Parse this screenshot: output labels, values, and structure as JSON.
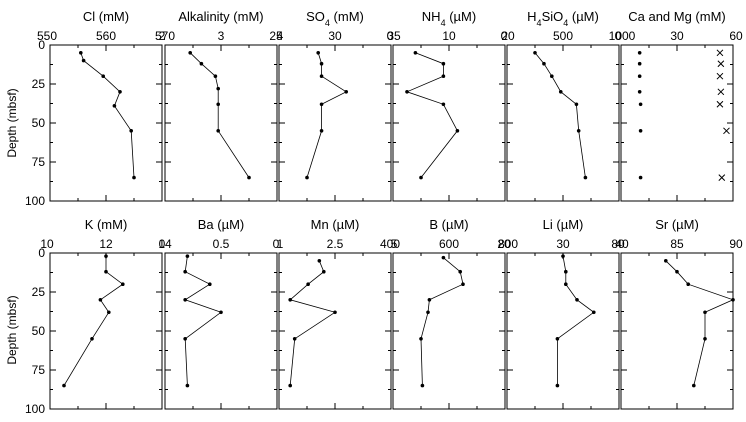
{
  "chart_data": [
    {
      "type": "line",
      "title": "Cl (mM)",
      "xlim": [
        550,
        570
      ],
      "xticks": [
        "550",
        "560",
        "570"
      ],
      "ylim": [
        0,
        100
      ],
      "series": [
        {
          "x": [
            555.5,
            556,
            559.5,
            562.5,
            561.5,
            564.5,
            565
          ],
          "y": [
            5,
            10,
            20,
            30,
            39,
            55,
            85
          ],
          "marker": "dot"
        }
      ]
    },
    {
      "type": "line",
      "title": "Alkalinity (mM)",
      "xlim": [
        2,
        4
      ],
      "xticks": [
        "2",
        "3",
        "4"
      ],
      "ylim": [
        0,
        100
      ],
      "series": [
        {
          "x": [
            2.45,
            2.65,
            2.9,
            2.95,
            2.95,
            2.95,
            3.5
          ],
          "y": [
            5,
            12,
            20,
            28,
            38,
            55,
            85
          ],
          "marker": "dot"
        }
      ]
    },
    {
      "type": "line",
      "title": "SO4 (mM)",
      "xlim": [
        25,
        35
      ],
      "xticks": [
        "25",
        "30",
        "35"
      ],
      "ylim": [
        0,
        100
      ],
      "series": [
        {
          "x": [
            28.5,
            28.8,
            28.8,
            31,
            28.8,
            28.8,
            27.5
          ],
          "y": [
            5,
            12,
            20,
            30,
            38,
            55,
            85
          ],
          "marker": "dot"
        }
      ]
    },
    {
      "type": "line",
      "title": "NH4 (µM)",
      "xlim": [
        0,
        20
      ],
      "xticks": [
        "0",
        "10",
        "20"
      ],
      "ylim": [
        0,
        100
      ],
      "series": [
        {
          "x": [
            4,
            9,
            9,
            2.5,
            9,
            11.5,
            5
          ],
          "y": [
            5,
            12,
            20,
            30,
            38,
            55,
            85
          ],
          "marker": "dot"
        }
      ]
    },
    {
      "type": "line",
      "title": "H4SiO4 (µM)",
      "xlim": [
        0,
        1000
      ],
      "xticks": [
        "0",
        "500",
        "1000"
      ],
      "ylim": [
        0,
        100
      ],
      "series": [
        {
          "x": [
            250,
            330,
            400,
            480,
            620,
            640,
            700
          ],
          "y": [
            5,
            12,
            20,
            30,
            38,
            55,
            85
          ],
          "marker": "dot"
        }
      ]
    },
    {
      "type": "scatter",
      "title": "Ca and Mg (mM)",
      "xlim": [
        0,
        60
      ],
      "xticks": [
        "0",
        "30",
        "60"
      ],
      "ylim": [
        0,
        100
      ],
      "series": [
        {
          "name": "Ca",
          "x": [
            10,
            10,
            10,
            10,
            10.5,
            10.5,
            10.5
          ],
          "y": [
            5,
            12,
            20,
            30,
            38,
            55,
            85
          ],
          "marker": "dot"
        },
        {
          "name": "Mg",
          "x": [
            53,
            53.5,
            53,
            53.5,
            53,
            56.5,
            54
          ],
          "y": [
            5,
            12,
            20,
            30,
            38,
            55,
            85
          ],
          "marker": "x"
        }
      ]
    },
    {
      "type": "line",
      "title": "K (mM)",
      "xlim": [
        10,
        14
      ],
      "xticks": [
        "10",
        "12",
        "14"
      ],
      "ylim": [
        0,
        100
      ],
      "series": [
        {
          "x": [
            12,
            12,
            12.6,
            11.8,
            12.1,
            11.5,
            10.5
          ],
          "y": [
            2,
            12,
            20,
            30,
            38,
            55,
            85
          ],
          "marker": "dot"
        }
      ]
    },
    {
      "type": "line",
      "title": "Ba (µM)",
      "xlim": [
        0,
        1
      ],
      "xticks": [
        "0",
        "0.5",
        "1"
      ],
      "ylim": [
        0,
        100
      ],
      "series": [
        {
          "x": [
            0.2,
            0.18,
            0.4,
            0.18,
            0.5,
            0.18,
            0.2
          ],
          "y": [
            2,
            12,
            20,
            30,
            38,
            55,
            85
          ],
          "marker": "dot"
        }
      ]
    },
    {
      "type": "line",
      "title": "Mn (µM)",
      "xlim": [
        0,
        5
      ],
      "xticks": [
        "0",
        "2.5",
        "5"
      ],
      "ylim": [
        0,
        100
      ],
      "series": [
        {
          "x": [
            1.8,
            2,
            1.3,
            0.5,
            2.5,
            0.7,
            0.5
          ],
          "y": [
            5,
            12,
            20,
            30,
            38,
            55,
            85
          ],
          "marker": "dot"
        }
      ]
    },
    {
      "type": "line",
      "title": "B (µM)",
      "xlim": [
        400,
        800
      ],
      "xticks": [
        "400",
        "600",
        "800"
      ],
      "ylim": [
        0,
        100
      ],
      "series": [
        {
          "x": [
            580,
            640,
            650,
            530,
            525,
            500,
            505
          ],
          "y": [
            3,
            12,
            20,
            30,
            38,
            55,
            85
          ],
          "marker": "dot"
        }
      ]
    },
    {
      "type": "line",
      "title": "Li (µM)",
      "xlim": [
        20,
        40
      ],
      "xticks": [
        "20",
        "30",
        "40"
      ],
      "ylim": [
        0,
        100
      ],
      "series": [
        {
          "x": [
            30,
            30.5,
            30.5,
            32.5,
            35.5,
            29,
            29
          ],
          "y": [
            2,
            12,
            20,
            30,
            38,
            55,
            85
          ],
          "marker": "dot"
        }
      ]
    },
    {
      "type": "line",
      "title": "Sr (µM)",
      "xlim": [
        80,
        90
      ],
      "xticks": [
        "80",
        "85",
        "90"
      ],
      "ylim": [
        0,
        100
      ],
      "series": [
        {
          "x": [
            84,
            85,
            86,
            90,
            87.5,
            87.5,
            86.5
          ],
          "y": [
            5,
            12,
            20,
            30,
            38,
            55,
            85
          ],
          "marker": "dot"
        }
      ]
    }
  ],
  "y_axis": {
    "label": "Depth (mbsf)",
    "ticks": [
      "0",
      "25",
      "50",
      "75",
      "100"
    ]
  }
}
